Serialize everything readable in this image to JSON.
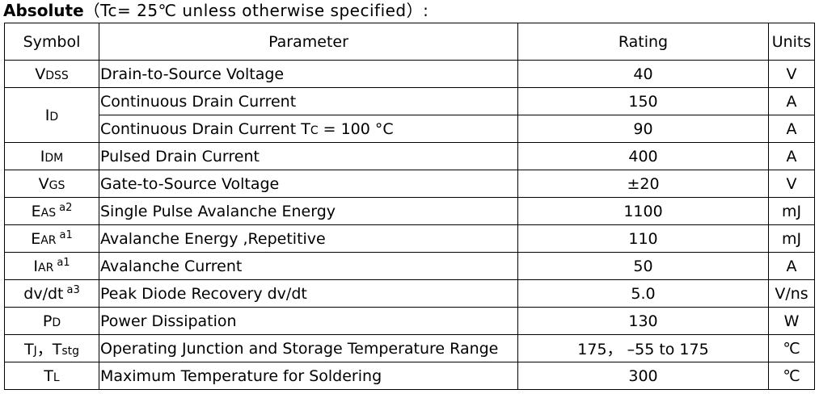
{
  "title": {
    "bold": "Absolute",
    "condition": "（Tc= 25℃  unless otherwise specified）:"
  },
  "table": {
    "headers": {
      "symbol": "Symbol",
      "parameter": "Parameter",
      "rating": "Rating",
      "units": "Units"
    },
    "rows": [
      {
        "sym_main": "V",
        "sym_sub": "DSS",
        "sym_sup": "",
        "parameter": "Drain-to-Source Voltage",
        "rating": "40",
        "units": "V"
      },
      {
        "sym_main": "I",
        "sym_sub": "D",
        "sym_sup": "",
        "parameter": "Continuous Drain Current",
        "rating": "150",
        "units": "A"
      },
      {
        "parameter_main": "Continuous Drain Current T",
        "parameter_sub": "C",
        "parameter_tail": " = 100 °C",
        "rating": "90",
        "units": "A"
      },
      {
        "sym_main": "I",
        "sym_sub": "DM",
        "sym_sup": "",
        "parameter": "Pulsed Drain Current",
        "rating": "400",
        "units": "A"
      },
      {
        "sym_main": "V",
        "sym_sub": "GS",
        "sym_sup": "",
        "parameter": "Gate-to-Source Voltage",
        "rating": "±20",
        "units": "V"
      },
      {
        "sym_main": "E",
        "sym_sub": "AS",
        "sym_sup": "a2",
        "parameter": "Single Pulse Avalanche Energy",
        "rating": "1100",
        "units": "mJ"
      },
      {
        "sym_main": "E",
        "sym_sub": "AR",
        "sym_sup": "a1",
        "parameter": "Avalanche Energy ,Repetitive",
        "rating": "110",
        "units": "mJ"
      },
      {
        "sym_main": "I",
        "sym_sub": "AR",
        "sym_sup": "a1",
        "parameter": "Avalanche Current",
        "rating": "50",
        "units": "A"
      },
      {
        "sym_main": "dv/dt",
        "sym_sub": "",
        "sym_sup": "a3",
        "parameter": "Peak Diode Recovery dv/dt",
        "rating": "5.0",
        "units": "V/ns"
      },
      {
        "sym_main": "P",
        "sym_sub": "D",
        "sym_sup": "",
        "parameter": "Power Dissipation",
        "rating": "130",
        "units": "W"
      },
      {
        "sym_main": "T",
        "sym_sub": "J",
        "sym_mid": "，",
        "sym_main2": "T",
        "sym_sub2": "stg",
        "parameter": "Operating Junction and Storage Temperature Range",
        "rating": "175， –55 to 175",
        "units": "℃"
      },
      {
        "sym_main": "T",
        "sym_sub": "L",
        "sym_sup": "",
        "parameter": "Maximum Temperature for Soldering",
        "rating": "300",
        "units": "℃"
      }
    ]
  }
}
